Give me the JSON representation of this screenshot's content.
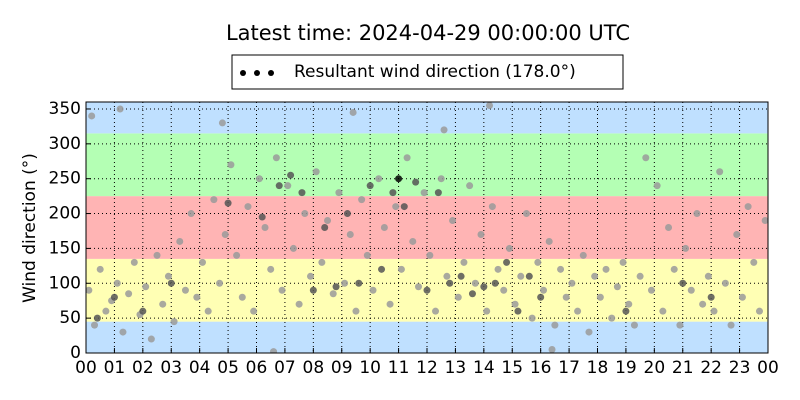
{
  "chart_data": {
    "type": "scatter",
    "title": "Latest time: 2024-04-29 00:00:00 UTC",
    "ylabel": "Wind direction (°)",
    "xlim": [
      0,
      24
    ],
    "ylim": [
      0,
      360
    ],
    "xticks": [
      {
        "value": 0,
        "label": "00"
      },
      {
        "value": 1,
        "label": "01"
      },
      {
        "value": 2,
        "label": "02"
      },
      {
        "value": 3,
        "label": "03"
      },
      {
        "value": 4,
        "label": "04"
      },
      {
        "value": 5,
        "label": "05"
      },
      {
        "value": 6,
        "label": "06"
      },
      {
        "value": 7,
        "label": "07"
      },
      {
        "value": 8,
        "label": "08"
      },
      {
        "value": 9,
        "label": "09"
      },
      {
        "value": 10,
        "label": "10"
      },
      {
        "value": 11,
        "label": "11"
      },
      {
        "value": 12,
        "label": "12"
      },
      {
        "value": 13,
        "label": "13"
      },
      {
        "value": 14,
        "label": "14"
      },
      {
        "value": 15,
        "label": "15"
      },
      {
        "value": 16,
        "label": "16"
      },
      {
        "value": 17,
        "label": "17"
      },
      {
        "value": 18,
        "label": "18"
      },
      {
        "value": 19,
        "label": "19"
      },
      {
        "value": 20,
        "label": "20"
      },
      {
        "value": 21,
        "label": "21"
      },
      {
        "value": 22,
        "label": "22"
      },
      {
        "value": 23,
        "label": "23"
      },
      {
        "value": 24,
        "label": "00"
      }
    ],
    "yticks": [
      0,
      50,
      100,
      150,
      200,
      250,
      300,
      350
    ],
    "grid": true,
    "bands": [
      {
        "from": 0,
        "to": 45,
        "color": "#bfe0ff"
      },
      {
        "from": 45,
        "to": 135,
        "color": "#ffffb4"
      },
      {
        "from": 135,
        "to": 225,
        "color": "#ffb4b4"
      },
      {
        "from": 225,
        "to": 315,
        "color": "#b4ffb4"
      },
      {
        "from": 315,
        "to": 360,
        "color": "#bfe0ff"
      }
    ],
    "series": [
      {
        "color": "#9a9a9a",
        "x": [
          0.1,
          0.3,
          0.5,
          0.7,
          0.9,
          1.1,
          1.3,
          1.5,
          1.7,
          1.9,
          2.1,
          2.3,
          2.5,
          2.7,
          2.9,
          3.1,
          3.3,
          3.5,
          3.7,
          3.9,
          4.1,
          4.3,
          4.5,
          4.7,
          4.9,
          5.1,
          5.3,
          5.5,
          5.7,
          5.9,
          6.1,
          6.3,
          6.5,
          6.7,
          6.9,
          7.1,
          7.3,
          7.5,
          7.7,
          7.9,
          8.1,
          8.3,
          8.5,
          8.7,
          8.9,
          9.1,
          9.3,
          9.5,
          9.7,
          9.9,
          10.1,
          10.3,
          10.5,
          10.7,
          10.9,
          11.1,
          11.3,
          11.5,
          11.7,
          11.9,
          12.1,
          12.3,
          12.5,
          12.7,
          12.9,
          13.1,
          13.3,
          13.5,
          13.7,
          13.9,
          14.1,
          14.3,
          14.5,
          14.7,
          14.9,
          15.1,
          15.3,
          15.5,
          15.7,
          15.9,
          16.1,
          16.3,
          16.5,
          16.7,
          16.9,
          17.1,
          17.3,
          17.5,
          17.7,
          17.9,
          18.1,
          18.3,
          18.5,
          18.7,
          18.9,
          19.1,
          19.3,
          19.5,
          19.7,
          19.9,
          20.1,
          20.3,
          20.5,
          20.7,
          20.9,
          21.1,
          21.3,
          21.5,
          21.7,
          21.9,
          22.1,
          22.3,
          22.5,
          22.7,
          22.9,
          23.1,
          23.3,
          23.5,
          23.7,
          23.9,
          0.2,
          1.2,
          4.8,
          9.4,
          14.2,
          16.4,
          6.6,
          12.6
        ],
        "values": [
          90,
          40,
          120,
          60,
          75,
          100,
          30,
          85,
          130,
          55,
          95,
          20,
          140,
          70,
          110,
          45,
          160,
          90,
          200,
          80,
          130,
          60,
          220,
          100,
          170,
          270,
          140,
          80,
          210,
          60,
          250,
          180,
          120,
          280,
          90,
          240,
          150,
          70,
          200,
          110,
          260,
          130,
          190,
          85,
          230,
          100,
          170,
          60,
          220,
          140,
          90,
          250,
          180,
          70,
          210,
          120,
          280,
          160,
          95,
          230,
          140,
          60,
          250,
          110,
          190,
          80,
          130,
          240,
          100,
          170,
          60,
          210,
          120,
          90,
          150,
          70,
          110,
          200,
          50,
          130,
          90,
          160,
          40,
          120,
          80,
          100,
          60,
          140,
          30,
          110,
          80,
          120,
          50,
          95,
          130,
          70,
          40,
          110,
          280,
          90,
          240,
          60,
          180,
          120,
          40,
          150,
          90,
          200,
          70,
          110,
          60,
          260,
          100,
          40,
          170,
          80,
          210,
          130,
          60,
          190,
          340,
          350,
          330,
          345,
          355,
          5,
          2,
          320
        ]
      },
      {
        "color": "#555555",
        "x": [
          6.2,
          6.8,
          7.2,
          7.6,
          8.0,
          8.4,
          8.8,
          9.2,
          9.6,
          10.0,
          10.4,
          10.8,
          11.2,
          11.6,
          12.0,
          12.4,
          12.8,
          13.2,
          13.6,
          14.0,
          14.4,
          14.8,
          15.2,
          15.6,
          16.0,
          5.0,
          3.0,
          2.0,
          1.0,
          0.4,
          19.0,
          21.0,
          22.0
        ],
        "values": [
          195,
          240,
          255,
          230,
          90,
          180,
          95,
          200,
          100,
          240,
          120,
          230,
          210,
          245,
          90,
          230,
          100,
          110,
          85,
          95,
          100,
          130,
          60,
          110,
          80,
          215,
          100,
          60,
          80,
          50,
          60,
          100,
          80
        ]
      },
      {
        "name": "Resultant wind direction (178.0°)",
        "color": "#000000",
        "x": [
          11
        ],
        "values": [
          250
        ]
      }
    ]
  }
}
